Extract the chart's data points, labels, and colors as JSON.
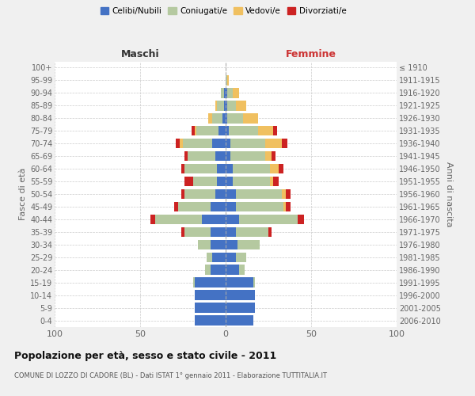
{
  "age_groups": [
    "0-4",
    "5-9",
    "10-14",
    "15-19",
    "20-24",
    "25-29",
    "30-34",
    "35-39",
    "40-44",
    "45-49",
    "50-54",
    "55-59",
    "60-64",
    "65-69",
    "70-74",
    "75-79",
    "80-84",
    "85-89",
    "90-94",
    "95-99",
    "100+"
  ],
  "birth_years": [
    "2006-2010",
    "2001-2005",
    "1996-2000",
    "1991-1995",
    "1986-1990",
    "1981-1985",
    "1976-1980",
    "1971-1975",
    "1966-1970",
    "1961-1965",
    "1956-1960",
    "1951-1955",
    "1946-1950",
    "1941-1945",
    "1936-1940",
    "1931-1935",
    "1926-1930",
    "1921-1925",
    "1916-1920",
    "1911-1915",
    "≤ 1910"
  ],
  "colors": {
    "celibi": "#4472C4",
    "coniugati": "#B5C9A0",
    "vedovi": "#F0C060",
    "divorziati": "#CC2222"
  },
  "males": {
    "celibi": [
      18,
      18,
      18,
      18,
      9,
      8,
      9,
      9,
      14,
      9,
      6,
      5,
      5,
      6,
      8,
      4,
      2,
      1,
      1,
      0,
      0
    ],
    "coniugati": [
      0,
      0,
      0,
      1,
      3,
      3,
      7,
      15,
      27,
      19,
      18,
      14,
      19,
      16,
      17,
      13,
      6,
      4,
      2,
      0,
      0
    ],
    "vedovi": [
      0,
      0,
      0,
      0,
      0,
      0,
      0,
      0,
      0,
      0,
      0,
      0,
      0,
      0,
      2,
      1,
      2,
      1,
      0,
      0,
      0
    ],
    "divorziati": [
      0,
      0,
      0,
      0,
      0,
      0,
      0,
      2,
      3,
      2,
      2,
      5,
      2,
      2,
      2,
      2,
      0,
      0,
      0,
      0,
      0
    ]
  },
  "females": {
    "celibi": [
      16,
      17,
      17,
      16,
      8,
      6,
      7,
      6,
      8,
      6,
      6,
      4,
      4,
      3,
      3,
      2,
      1,
      1,
      1,
      0,
      0
    ],
    "coniugati": [
      0,
      0,
      0,
      1,
      3,
      6,
      13,
      19,
      34,
      28,
      27,
      22,
      22,
      20,
      20,
      17,
      9,
      5,
      3,
      1,
      0
    ],
    "vedovi": [
      0,
      0,
      0,
      0,
      0,
      0,
      0,
      0,
      0,
      1,
      2,
      2,
      5,
      4,
      10,
      9,
      9,
      6,
      4,
      1,
      0
    ],
    "divorziati": [
      0,
      0,
      0,
      0,
      0,
      0,
      0,
      2,
      4,
      3,
      3,
      3,
      3,
      2,
      3,
      2,
      0,
      0,
      0,
      0,
      0
    ]
  },
  "xlim": 100,
  "title": "Popolazione per età, sesso e stato civile - 2011",
  "subtitle": "COMUNE DI LOZZO DI CADORE (BL) - Dati ISTAT 1° gennaio 2011 - Elaborazione TUTTITALIA.IT",
  "xlabel_left": "Maschi",
  "xlabel_right": "Femmine",
  "ylabel_left": "Fasce di età",
  "ylabel_right": "Anni di nascita",
  "legend_labels": [
    "Celibi/Nubili",
    "Coniugati/e",
    "Vedovi/e",
    "Divorziati/e"
  ],
  "background_color": "#f0f0f0",
  "plot_bg": "#ffffff"
}
